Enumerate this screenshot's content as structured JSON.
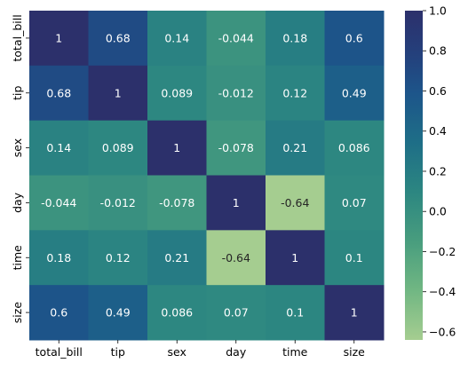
{
  "chart_data": {
    "type": "heatmap",
    "title": "",
    "xlabel": "",
    "ylabel": "",
    "x_categories": [
      "total_bill",
      "tip",
      "sex",
      "day",
      "time",
      "size"
    ],
    "y_categories": [
      "total_bill",
      "tip",
      "sex",
      "day",
      "time",
      "size"
    ],
    "values": [
      [
        1,
        0.68,
        0.14,
        -0.044,
        0.18,
        0.6
      ],
      [
        0.68,
        1,
        0.089,
        -0.012,
        0.12,
        0.49
      ],
      [
        0.14,
        0.089,
        1,
        -0.078,
        0.21,
        0.086
      ],
      [
        -0.044,
        -0.012,
        -0.078,
        1,
        -0.64,
        0.07
      ],
      [
        0.18,
        0.12,
        0.21,
        -0.64,
        1,
        0.1
      ],
      [
        0.6,
        0.49,
        0.086,
        0.07,
        0.1,
        1
      ]
    ],
    "annotations": [
      [
        "1",
        "0.68",
        "0.14",
        "-0.044",
        "0.18",
        "0.6"
      ],
      [
        "0.68",
        "1",
        "0.089",
        "-0.012",
        "0.12",
        "0.49"
      ],
      [
        "0.14",
        "0.089",
        "1",
        "-0.078",
        "0.21",
        "0.086"
      ],
      [
        "-0.044",
        "-0.012",
        "-0.078",
        "1",
        "-0.64",
        "0.07"
      ],
      [
        "0.18",
        "0.12",
        "0.21",
        "-0.64",
        "1",
        "0.1"
      ],
      [
        "0.6",
        "0.49",
        "0.086",
        "0.07",
        "0.1",
        "1"
      ]
    ],
    "colormap": "crest",
    "vmin": -0.64,
    "vmax": 1,
    "colorbar": {
      "ticks": [
        1.0,
        0.8,
        0.6,
        0.4,
        0.2,
        0.0,
        -0.2,
        -0.4,
        -0.6
      ],
      "tick_labels": [
        "1.0",
        "0.8",
        "0.6",
        "0.4",
        "0.2",
        "0.0",
        "−0.2",
        "−0.4",
        "−0.6"
      ]
    },
    "colorbar_position": "right",
    "grid": false
  }
}
